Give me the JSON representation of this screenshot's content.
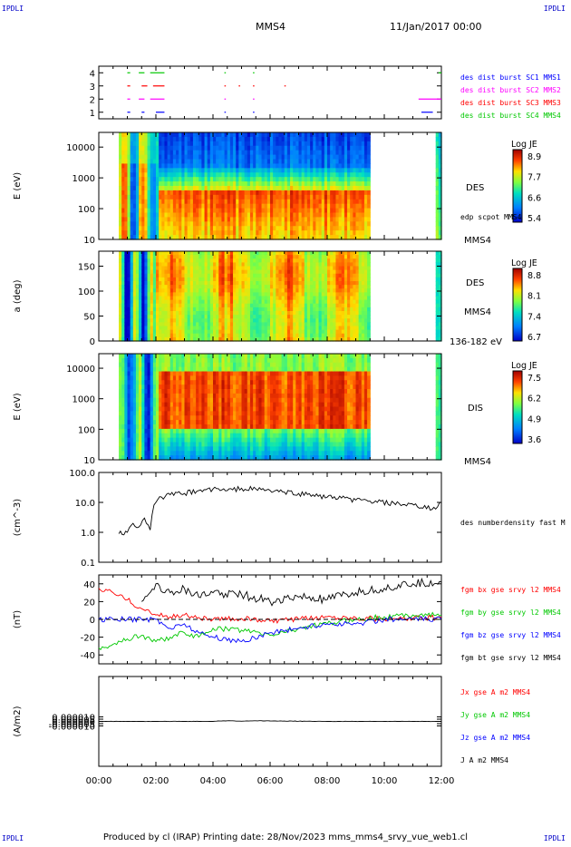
{
  "page": {
    "corner_left": "IPDLI",
    "corner_right": "IPDLI",
    "spacecraft": "MMS4",
    "date": "11/Jan/2017 00:00",
    "footer_left": "IPDLI",
    "footer_right": "IPDLI",
    "footer": "Produced by cl (IRAP)   Printing date: 28/Nov/2023   mms_mms4_srvy_vue_web1.cl"
  },
  "chart_data": [
    {
      "id": "burst",
      "type": "line",
      "ylim": [
        0.5,
        4.5
      ],
      "yticks": [
        "1",
        "2",
        "3",
        "4"
      ],
      "legend": [
        {
          "text": "des dist burst SC1 MMS1",
          "color": "#0000ff"
        },
        {
          "text": "des dist burst SC2 MMS2",
          "color": "#ff00ff"
        },
        {
          "text": "des dist burst SC3 MMS3",
          "color": "#ff0000"
        },
        {
          "text": "des dist burst SC4 MMS4",
          "color": "#00c800"
        }
      ],
      "series": [
        {
          "y": 1,
          "color": "#0000ff",
          "segments": [
            [
              1.0,
              1.1
            ],
            [
              1.5,
              1.6
            ],
            [
              2.0,
              2.3
            ],
            [
              4.4,
              4.45
            ],
            [
              5.4,
              5.45
            ],
            [
              11.3,
              11.7
            ]
          ]
        },
        {
          "y": 2,
          "color": "#ff00ff",
          "segments": [
            [
              1.0,
              1.1
            ],
            [
              1.4,
              1.6
            ],
            [
              1.8,
              2.3
            ],
            [
              4.4,
              4.45
            ],
            [
              5.4,
              5.45
            ],
            [
              11.2,
              12.0
            ]
          ]
        },
        {
          "y": 3,
          "color": "#ff0000",
          "segments": [
            [
              1.0,
              1.1
            ],
            [
              1.5,
              1.7
            ],
            [
              1.9,
              2.3
            ],
            [
              4.4,
              4.45
            ],
            [
              4.9,
              4.95
            ],
            [
              5.4,
              5.45
            ],
            [
              6.5,
              6.55
            ]
          ]
        },
        {
          "y": 4,
          "color": "#00c800",
          "segments": [
            [
              1.0,
              1.1
            ],
            [
              1.4,
              1.6
            ],
            [
              1.8,
              2.3
            ],
            [
              4.4,
              4.45
            ],
            [
              5.4,
              5.45
            ],
            [
              11.9,
              12.0
            ]
          ]
        }
      ]
    },
    {
      "id": "des-energy",
      "type": "heatmap",
      "ylabel": "E (eV)",
      "log_y": true,
      "ylim": [
        10,
        30000
      ],
      "yticks": [
        "10",
        "100",
        "1000",
        "10000"
      ],
      "colorbar": {
        "title": "Log JE",
        "ticks": [
          "8.9",
          "7.7",
          "6.6",
          "5.4"
        ]
      },
      "labels": [
        "DES",
        "edp scpot MMS4",
        "MMS4"
      ],
      "data_ranges": [
        [
          0.7,
          9.5
        ],
        [
          11.8,
          12.0
        ]
      ]
    },
    {
      "id": "des-pitch",
      "type": "heatmap",
      "ylabel": "a (deg)",
      "ylim": [
        0,
        180
      ],
      "yticks": [
        "0",
        "50",
        "100",
        "150"
      ],
      "colorbar": {
        "title": "Log JE",
        "ticks": [
          "8.8",
          "8.1",
          "7.4",
          "6.7"
        ]
      },
      "labels": [
        "DES",
        "MMS4",
        "136-182 eV"
      ],
      "data_ranges": [
        [
          0.7,
          9.5
        ],
        [
          11.8,
          12.0
        ]
      ]
    },
    {
      "id": "dis-energy",
      "type": "heatmap",
      "ylabel": "E (eV)",
      "log_y": true,
      "ylim": [
        10,
        30000
      ],
      "yticks": [
        "10",
        "100",
        "1000",
        "10000"
      ],
      "colorbar": {
        "title": "Log JE",
        "ticks": [
          "7.5",
          "6.2",
          "4.9",
          "3.6"
        ]
      },
      "labels": [
        "DIS",
        "MMS4"
      ],
      "data_ranges": [
        [
          0.7,
          9.5
        ],
        [
          11.8,
          12.0
        ]
      ]
    },
    {
      "id": "density",
      "type": "line",
      "ylabel": "(cm^-3)",
      "log_y": true,
      "ylim": [
        0.1,
        100.0
      ],
      "yticks": [
        "0.1",
        "1.0",
        "10.0",
        "100.0"
      ],
      "legend": [
        {
          "text": "des numberdensity fast M",
          "color": "#000000"
        }
      ],
      "series": [
        {
          "name": "des numberdensity fast M",
          "color": "#000000",
          "x": [
            0.7,
            1.0,
            1.2,
            1.4,
            1.6,
            1.8,
            2.0,
            2.2,
            2.5,
            3.0,
            3.5,
            4.0,
            4.5,
            5.0,
            5.5,
            6.0,
            6.5,
            7.0,
            7.5,
            8.0,
            8.5,
            9.0,
            9.5,
            11.8,
            12.0
          ],
          "y": [
            0.9,
            1.0,
            2.0,
            1.5,
            3.0,
            1.2,
            10,
            15,
            18,
            20,
            25,
            28,
            25,
            30,
            28,
            25,
            22,
            20,
            18,
            15,
            14,
            12,
            11,
            6,
            10
          ]
        }
      ]
    },
    {
      "id": "fgm",
      "type": "line",
      "ylabel": "(nT)",
      "ylim": [
        -50,
        50
      ],
      "yticks": [
        "-40",
        "-20",
        "0",
        "20",
        "40"
      ],
      "legend": [
        {
          "text": "fgm bx gse srvy l2 MMS4",
          "color": "#ff0000"
        },
        {
          "text": "fgm by gse srvy l2 MMS4",
          "color": "#00c800"
        },
        {
          "text": "fgm bz gse srvy l2 MMS4",
          "color": "#0000ff"
        },
        {
          "text": "fgm bt gse srvy l2 MMS4",
          "color": "#000000"
        }
      ],
      "series": [
        {
          "name": "fgm bx gse srvy l2 MMS4",
          "color": "#ff0000",
          "x": [
            0.0,
            0.5,
            1.0,
            1.5,
            2.0,
            2.5,
            3.0,
            3.5,
            4.0,
            5.0,
            6.0,
            7.0,
            8.0,
            9.0,
            10.0,
            11.0,
            12.0
          ],
          "y": [
            35,
            30,
            22,
            12,
            5,
            3,
            5,
            2,
            0,
            1,
            -2,
            0,
            3,
            2,
            0,
            1,
            2
          ]
        },
        {
          "name": "fgm by gse srvy l2 MMS4",
          "color": "#00c800",
          "x": [
            0.0,
            0.5,
            1.0,
            1.5,
            2.0,
            2.5,
            3.0,
            3.5,
            4.0,
            5.0,
            6.0,
            7.0,
            8.0,
            9.0,
            10.0,
            11.0,
            12.0
          ],
          "y": [
            -32,
            -28,
            -22,
            -18,
            -25,
            -20,
            -15,
            -20,
            -10,
            -12,
            -18,
            -10,
            -5,
            0,
            3,
            5,
            5
          ]
        },
        {
          "name": "fgm bz gse srvy l2 MMS4",
          "color": "#0000ff",
          "x": [
            0.0,
            0.5,
            1.0,
            1.5,
            2.0,
            2.5,
            3.0,
            3.5,
            4.0,
            5.0,
            6.0,
            7.0,
            8.0,
            9.0,
            10.0,
            11.0,
            12.0
          ],
          "y": [
            0,
            0,
            0,
            0,
            0,
            -10,
            -5,
            -15,
            -20,
            -25,
            -15,
            -10,
            -5,
            -5,
            0,
            0,
            0
          ]
        },
        {
          "name": "fgm bt gse srvy l2 MMS4",
          "color": "#000000",
          "x": [
            1.5,
            2.0,
            2.5,
            3.0,
            3.5,
            4.0,
            5.0,
            6.0,
            7.0,
            8.0,
            9.0,
            10.0,
            11.0,
            12.0
          ],
          "y": [
            20,
            40,
            30,
            35,
            25,
            30,
            28,
            20,
            25,
            22,
            30,
            35,
            40,
            42
          ]
        }
      ]
    },
    {
      "id": "current",
      "type": "line",
      "ylabel": "(A/m2)",
      "ylim": [
        -0.0001,
        0.0001
      ],
      "yticks": [
        "-0.000010",
        "-0.000005",
        "0.000000",
        "0.000005",
        "0.000010"
      ],
      "xticks": [
        "00:00",
        "02:00",
        "04:00",
        "06:00",
        "08:00",
        "10:00",
        "12:00"
      ],
      "xlim": [
        0,
        12
      ],
      "legend": [
        {
          "text": "Jx gse A m2 MMS4",
          "color": "#ff0000"
        },
        {
          "text": "Jy gse A m2 MMS4",
          "color": "#00c800"
        },
        {
          "text": "Jz gse A m2 MMS4",
          "color": "#0000ff"
        },
        {
          "text": "J A m2 MMS4",
          "color": "#000000"
        }
      ],
      "series": [
        {
          "name": "J A m2 MMS4",
          "color": "#000000",
          "x": [
            0.0,
            2.0,
            3.0,
            4.0,
            4.5,
            5.0,
            5.5,
            6.0,
            7.0,
            8.0,
            9.0,
            10.0,
            12.0
          ],
          "y": [
            0,
            0,
            0,
            0,
            1.5e-06,
            5e-07,
            1.5e-06,
            1e-06,
            5e-07,
            0,
            0,
            0,
            0
          ]
        }
      ]
    }
  ]
}
